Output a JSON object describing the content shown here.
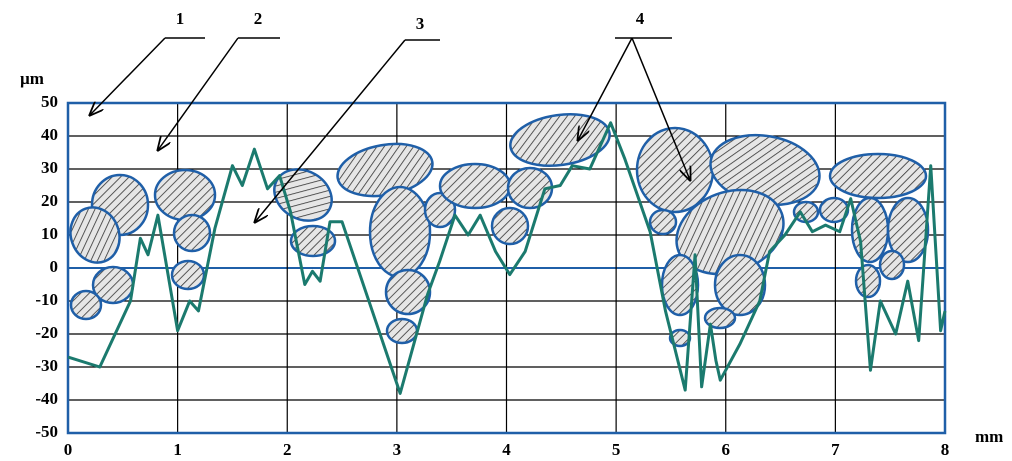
{
  "chart_data": {
    "type": "line",
    "x_label": "mm",
    "y_label": "µm",
    "annotations": [
      "1",
      "2",
      "3",
      "4"
    ],
    "x": [
      0,
      0.29,
      0.57,
      0.66,
      0.73,
      0.82,
      1.0,
      1.11,
      1.19,
      1.34,
      1.5,
      1.59,
      1.7,
      1.82,
      1.93,
      2.03,
      2.16,
      2.23,
      2.3,
      2.39,
      2.5,
      3.03,
      3.28,
      3.39,
      3.53,
      3.65,
      3.76,
      3.9,
      4.03,
      4.17,
      4.35,
      4.49,
      4.6,
      4.76,
      4.95,
      5.08,
      5.31,
      5.45,
      5.63,
      5.72,
      5.78,
      5.86,
      5.91,
      5.95,
      6.13,
      6.31,
      6.4,
      6.54,
      6.68,
      6.79,
      6.91,
      7.04,
      7.14,
      7.23,
      7.32,
      7.41,
      7.55,
      7.66,
      7.76,
      7.87,
      7.96,
      8
    ],
    "values": [
      -27,
      -30,
      -10,
      9,
      4,
      16,
      -19,
      -10,
      -13,
      12,
      31,
      25,
      36,
      24,
      28,
      17,
      -5,
      -1,
      -4,
      14,
      14,
      -38,
      -8,
      2,
      16,
      10,
      16,
      5,
      -2,
      5,
      24,
      25,
      31,
      30,
      44,
      33,
      11,
      -13,
      -37,
      4,
      -36,
      -17,
      -28,
      -34,
      -23,
      -10,
      5,
      10,
      17,
      11,
      13,
      11,
      21,
      8,
      -31,
      -10,
      -20,
      -4,
      -22,
      31,
      -19,
      -13
    ],
    "color": "#1b7a6e",
    "xlim": [
      0,
      8
    ],
    "xticks": [
      0,
      1,
      2,
      3,
      4,
      5,
      6,
      7,
      8
    ],
    "ylim": [
      -50,
      50
    ],
    "yticks": [
      -50,
      -40,
      -30,
      -20,
      -10,
      0,
      10,
      20,
      30,
      40,
      50
    ],
    "grid": true
  }
}
